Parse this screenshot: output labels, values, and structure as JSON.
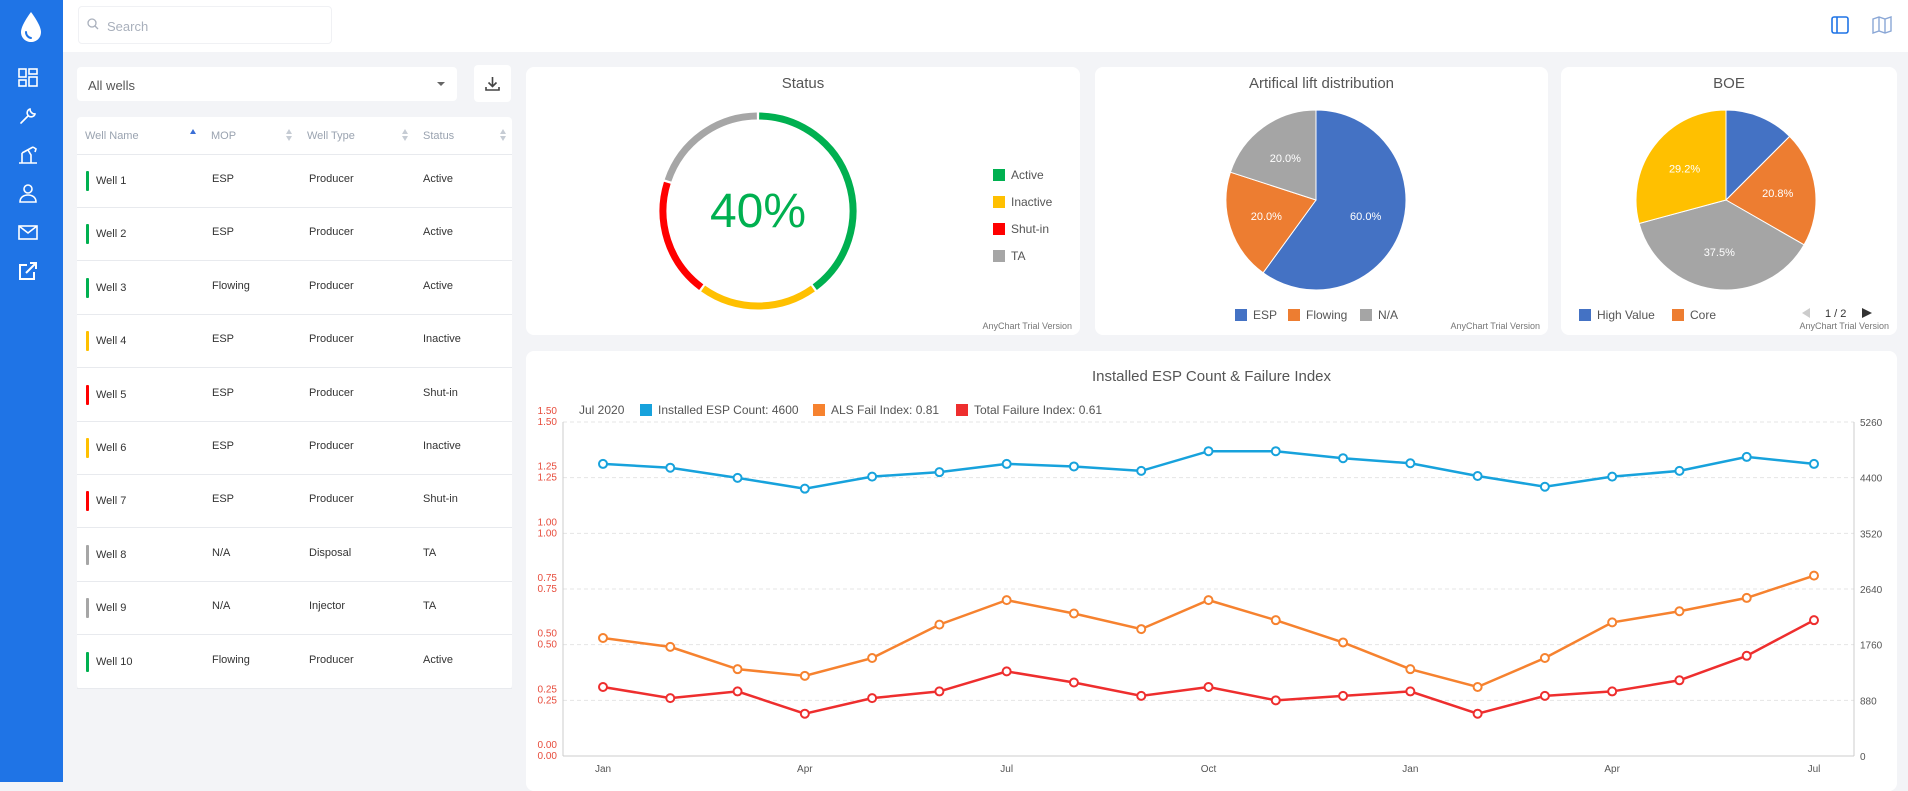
{
  "sidebar": {
    "logo": "water-drop-icon",
    "items": [
      {
        "icon": "dashboard-icon"
      },
      {
        "icon": "wrench-icon"
      },
      {
        "icon": "oil-pump-icon"
      },
      {
        "icon": "user-icon"
      },
      {
        "icon": "mail-icon"
      },
      {
        "icon": "external-link-icon"
      }
    ],
    "color": "#1f74e6"
  },
  "topbar": {
    "search_placeholder": "Search",
    "right_icons": [
      "panel-toggle-icon",
      "map-icon"
    ]
  },
  "filter": {
    "selected": "All wells",
    "download_icon": "download-icon"
  },
  "table": {
    "columns": [
      "Well Name",
      "MOP",
      "Well Type",
      "Status"
    ],
    "rows": [
      {
        "name": "Well 1",
        "mop": "ESP",
        "type": "Producer",
        "status": "Active",
        "color": "#00b050"
      },
      {
        "name": "Well 2",
        "mop": "ESP",
        "type": "Producer",
        "status": "Active",
        "color": "#00b050"
      },
      {
        "name": "Well 3",
        "mop": "Flowing",
        "type": "Producer",
        "status": "Active",
        "color": "#00b050"
      },
      {
        "name": "Well 4",
        "mop": "ESP",
        "type": "Producer",
        "status": "Inactive",
        "color": "#ffc000"
      },
      {
        "name": "Well 5",
        "mop": "ESP",
        "type": "Producer",
        "status": "Shut-in",
        "color": "#ff0000"
      },
      {
        "name": "Well 6",
        "mop": "ESP",
        "type": "Producer",
        "status": "Inactive",
        "color": "#ffc000"
      },
      {
        "name": "Well 7",
        "mop": "ESP",
        "type": "Producer",
        "status": "Shut-in",
        "color": "#ff0000"
      },
      {
        "name": "Well 8",
        "mop": "N/A",
        "type": "Disposal",
        "status": "TA",
        "color": "#a6a6a6"
      },
      {
        "name": "Well 9",
        "mop": "N/A",
        "type": "Injector",
        "status": "TA",
        "color": "#a6a6a6"
      },
      {
        "name": "Well 10",
        "mop": "Flowing",
        "type": "Producer",
        "status": "Active",
        "color": "#00b050"
      }
    ]
  },
  "trial_text": "AnyChart Trial Version",
  "status_card": {
    "title": "Status",
    "center_value": "40%",
    "center_color": "#00b050",
    "legend": [
      {
        "label": "Active",
        "color": "#00b050"
      },
      {
        "label": "Inactive",
        "color": "#ffc000"
      },
      {
        "label": "Shut-in",
        "color": "#ff0000"
      },
      {
        "label": "TA",
        "color": "#a6a6a6"
      }
    ]
  },
  "alift_card": {
    "title": "Artifical lift distribution",
    "legend": [
      {
        "label": "ESP",
        "color": "#4472c4"
      },
      {
        "label": "Flowing",
        "color": "#ed7d31"
      },
      {
        "label": "N/A",
        "color": "#a5a5a5"
      }
    ]
  },
  "boe_card": {
    "title": "BOE",
    "legend": [
      {
        "label": "High Value",
        "color": "#4472c4"
      },
      {
        "label": "Core",
        "color": "#ed7d31"
      }
    ],
    "pager": "1 / 2"
  },
  "line_card": {
    "title": "Installed ESP Count & Failure Index",
    "tooltip_date": "Jul 2020",
    "legend": [
      {
        "label": "Installed ESP Count: 4600",
        "color": "#17a2dc"
      },
      {
        "label": "ALS Fail Index: 0.81",
        "color": "#f6822f"
      },
      {
        "label": "Total Failure Index: 0.61",
        "color": "#ee2e2e"
      }
    ]
  },
  "chart_data": [
    {
      "type": "pie",
      "title": "Status",
      "donut": true,
      "center_label": "40%",
      "categories": [
        "Active",
        "Inactive",
        "Shut-in",
        "TA"
      ],
      "values": [
        40,
        20,
        20,
        20
      ],
      "colors": [
        "#00b050",
        "#ffc000",
        "#ff0000",
        "#a6a6a6"
      ]
    },
    {
      "type": "pie",
      "title": "Artifical lift distribution",
      "categories": [
        "ESP",
        "Flowing",
        "N/A"
      ],
      "values": [
        60.0,
        20.0,
        20.0
      ],
      "labels": [
        "60.0%",
        "20.0%",
        "20.0%"
      ],
      "colors": [
        "#4472c4",
        "#ed7d31",
        "#a5a5a5"
      ]
    },
    {
      "type": "pie",
      "title": "BOE",
      "categories": [
        "High Value",
        "Core",
        "",
        ""
      ],
      "values": [
        12.5,
        20.8,
        37.5,
        29.2
      ],
      "labels": [
        "",
        "20.8%",
        "37.5%",
        "29.2%"
      ],
      "colors": [
        "#4472c4",
        "#ed7d31",
        "#a5a5a5",
        "#ffc000"
      ]
    },
    {
      "type": "line",
      "title": "Installed ESP Count & Failure Index",
      "x": [
        "Jan",
        "Feb",
        "Mar",
        "Apr",
        "May",
        "Jun",
        "Jul",
        "Aug",
        "Sep",
        "Oct",
        "Nov",
        "Dec",
        "Jan",
        "Feb",
        "Mar",
        "Apr",
        "May",
        "Jun",
        "Jul"
      ],
      "x_tick_labels": {
        "0": "Jan",
        "3": "Apr",
        "6": "Jul",
        "9": "Oct",
        "12": "Jan",
        "15": "Apr",
        "18": "Jul"
      },
      "y_left_ticks": [
        "0.00",
        "0.25",
        "0.50",
        "0.75",
        "1.00",
        "1.25",
        "1.50"
      ],
      "y_left_ticks_red": [
        "0.00",
        "0.25",
        "0.50",
        "0.75",
        "1.00",
        "1.25",
        "1.50"
      ],
      "y_right_ticks": [
        "0",
        "880",
        "1760",
        "2640",
        "3520",
        "4400",
        "5260"
      ],
      "ylim_left": [
        0,
        1.5
      ],
      "ylim_right": [
        0,
        5260
      ],
      "series": [
        {
          "name": "Installed ESP Count",
          "axis": "right",
          "color": "#17a2dc",
          "values": [
            4600,
            4540,
            4380,
            4210,
            4400,
            4470,
            4600,
            4560,
            4490,
            4800,
            4800,
            4690,
            4610,
            4410,
            4240,
            4400,
            4490,
            4710,
            4600
          ]
        },
        {
          "name": "ALS Fail Index",
          "axis": "left",
          "color": "#f6822f",
          "values": [
            0.53,
            0.49,
            0.39,
            0.36,
            0.44,
            0.59,
            0.7,
            0.64,
            0.57,
            0.7,
            0.61,
            0.51,
            0.39,
            0.31,
            0.44,
            0.6,
            0.65,
            0.71,
            0.81
          ]
        },
        {
          "name": "Total Failure Index",
          "axis": "left",
          "color": "#ee2e2e",
          "values": [
            0.31,
            0.26,
            0.29,
            0.19,
            0.26,
            0.29,
            0.38,
            0.33,
            0.27,
            0.31,
            0.25,
            0.27,
            0.29,
            0.19,
            0.27,
            0.29,
            0.34,
            0.45,
            0.61
          ]
        }
      ]
    }
  ]
}
